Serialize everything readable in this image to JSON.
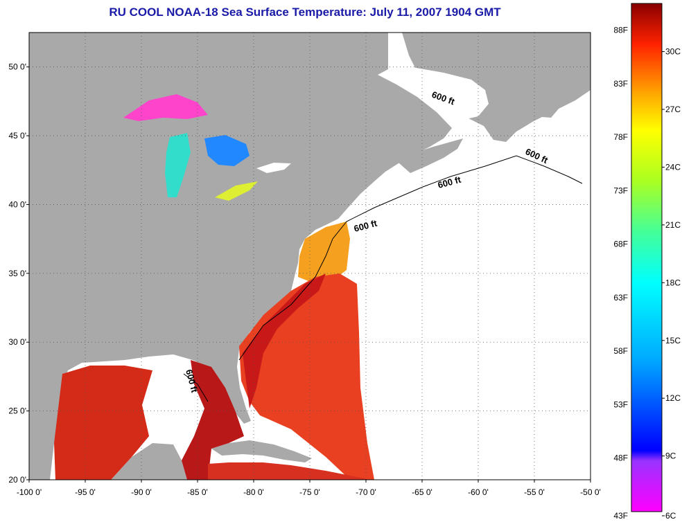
{
  "title": "RU COOL  NOAA-18  Sea Surface Temperature:  July 11, 2007 1904 GMT",
  "map": {
    "lon_range": [
      -100,
      -50
    ],
    "lat_range": [
      20,
      52.5
    ],
    "x_ticks": [
      "-100 0'",
      "-95 0'",
      "-90 0'",
      "-85 0'",
      "-80 0'",
      "-75 0'",
      "-70 0'",
      "-65 0'",
      "-60 0'",
      "-55 0'",
      "-50 0'"
    ],
    "y_ticks": [
      "50 0'",
      "45 0'",
      "40 0'",
      "35 0'",
      "30 0'",
      "25 0'",
      "20 0'"
    ],
    "grid": true,
    "contour_label": "600 ft",
    "colors": {
      "land": "#a9a9a9",
      "no_data": "#ffffff"
    }
  },
  "colorbar": {
    "f_labels": [
      "88F",
      "83F",
      "78F",
      "73F",
      "68F",
      "63F",
      "58F",
      "53F",
      "48F",
      "43F"
    ],
    "c_labels": [
      "30C",
      "27C",
      "24C",
      "21C",
      "18C",
      "15C",
      "12C",
      "9C",
      "6C"
    ]
  }
}
